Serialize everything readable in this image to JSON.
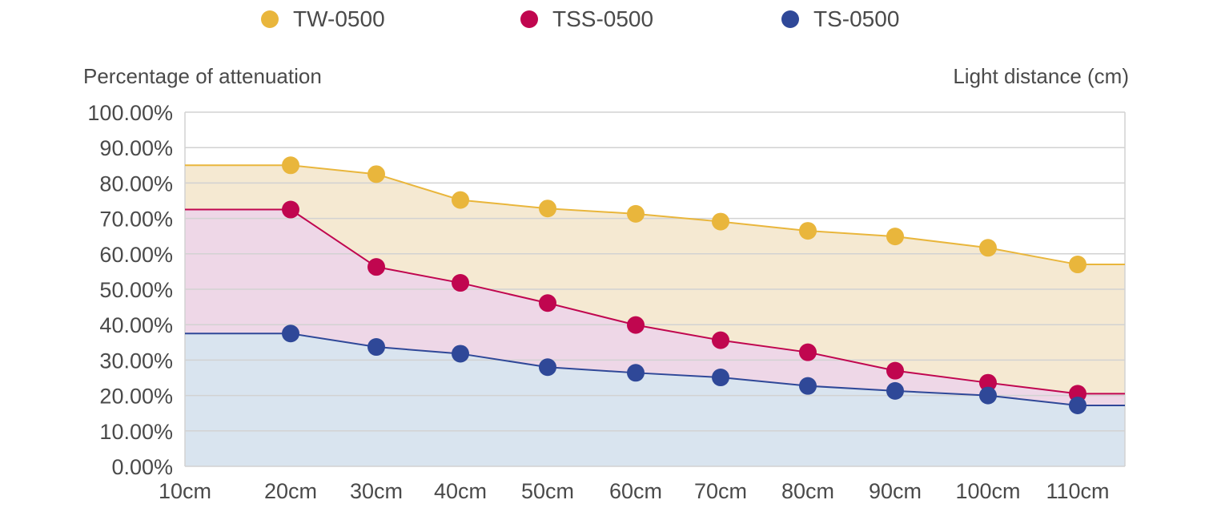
{
  "colors": {
    "TW-0500": "#e9b63c",
    "TSS-0500": "#c0064f",
    "TS-0500": "#2f4898",
    "fill_TW": "#f5e9d2",
    "fill_TSS": "#eed7e7",
    "fill_TS": "#d9e4ef",
    "grid": "#d2d2d2"
  },
  "chart_data": {
    "type": "area",
    "xlabel": "Light distance (cm)",
    "ylabel": "Percentage of attenuation",
    "categories": [
      "10cm",
      "20cm",
      "30cm",
      "40cm",
      "50cm",
      "60cm",
      "70cm",
      "80cm",
      "90cm",
      "100cm",
      "110cm"
    ],
    "ylim": [
      0,
      100
    ],
    "yticks": [
      "0.00%",
      "10.00%",
      "20.00%",
      "30.00%",
      "40.00%",
      "50.00%",
      "60.00%",
      "70.00%",
      "80.00%",
      "90.00%",
      "100.00%"
    ],
    "grid": true,
    "legend_position": "top",
    "series": [
      {
        "name": "TW-0500",
        "values": [
          85,
          85,
          82.5,
          75.2,
          72.8,
          71.3,
          69.1,
          66.5,
          64.9,
          61.7,
          57
        ]
      },
      {
        "name": "TSS-0500",
        "values": [
          72.5,
          72.5,
          56.3,
          51.8,
          46.1,
          39.9,
          35.6,
          32.2,
          27,
          23.6,
          20.5
        ]
      },
      {
        "name": "TS-0500",
        "values": [
          37.5,
          37.5,
          33.7,
          31.8,
          28,
          26.4,
          25.1,
          22.7,
          21.3,
          20,
          17.2
        ]
      }
    ]
  }
}
